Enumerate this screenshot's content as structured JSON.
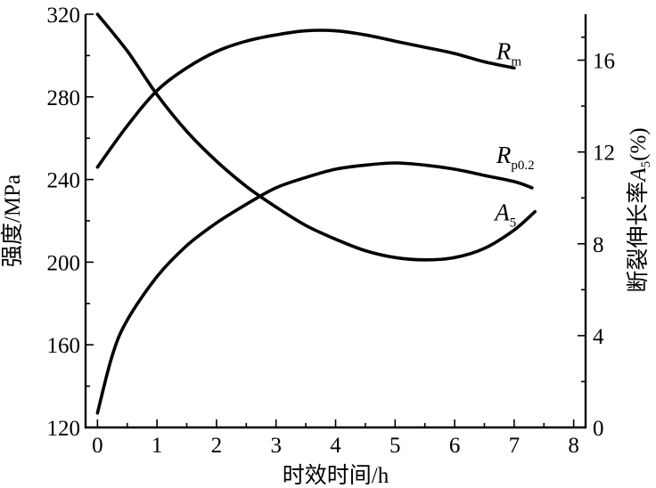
{
  "chart_data": {
    "type": "line",
    "xlabel": "时效时间/h",
    "ylabel_left": "强度/MPa",
    "ylabel_right": {
      "prefix": "断裂伸长率",
      "symbol": "A",
      "subscript": "5",
      "suffix": "(%)"
    },
    "xlim": [
      -0.2,
      8.2
    ],
    "ylim_left": [
      120,
      320
    ],
    "ylim_right": [
      0,
      18
    ],
    "x_ticks": [
      0,
      1,
      2,
      3,
      4,
      5,
      6,
      7,
      8
    ],
    "x_tick_labels": [
      "0",
      "1",
      "2",
      "3",
      "4",
      "5",
      "6",
      "7",
      "8"
    ],
    "y_left_ticks": [
      120,
      160,
      200,
      240,
      280,
      320
    ],
    "y_left_tick_labels": [
      "120",
      "160",
      "200",
      "240",
      "280",
      "320"
    ],
    "y_right_ticks": [
      0,
      4,
      8,
      12,
      16
    ],
    "y_right_tick_labels": [
      "0",
      "4",
      "8",
      "12",
      "16"
    ],
    "grid": false,
    "legend": "none",
    "series": [
      {
        "name": "Rm",
        "label_main": "R",
        "label_sub": "m",
        "axis": "left",
        "x": [
          0,
          0.5,
          1,
          1.5,
          2,
          2.5,
          3,
          3.5,
          4,
          4.5,
          5,
          5.5,
          6,
          6.5,
          7
        ],
        "y": [
          246,
          266,
          283,
          294,
          302,
          307,
          310,
          312,
          312,
          310,
          307,
          304,
          301,
          297,
          294
        ]
      },
      {
        "name": "Rp0.2",
        "label_main": "R",
        "label_sub": "p0.2",
        "axis": "left",
        "x": [
          0,
          0.25,
          0.5,
          1,
          1.5,
          2,
          2.5,
          3,
          3.5,
          4,
          4.5,
          5,
          5.5,
          6,
          6.5,
          7,
          7.3
        ],
        "y": [
          127,
          155,
          172,
          193,
          208,
          219,
          228,
          236,
          241,
          245,
          247,
          248,
          247,
          245,
          242,
          239,
          236
        ]
      },
      {
        "name": "A5",
        "label_main": "A",
        "label_sub": "5",
        "axis": "right",
        "x": [
          0,
          0.5,
          1,
          1.5,
          2,
          2.5,
          3,
          3.5,
          4,
          4.5,
          5,
          5.5,
          6,
          6.5,
          7,
          7.35
        ],
        "y": [
          18,
          16.4,
          14.5,
          12.9,
          11.6,
          10.5,
          9.6,
          8.8,
          8.2,
          7.7,
          7.4,
          7.3,
          7.4,
          7.8,
          8.6,
          9.4
        ]
      }
    ]
  }
}
